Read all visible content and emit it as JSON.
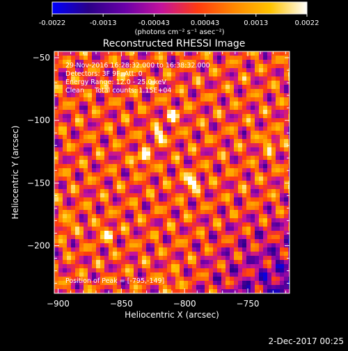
{
  "window": {
    "timestamp": "2-Dec-2017 00:25"
  },
  "colorbar": {
    "palette": [
      "#0000ff",
      "#2a0088",
      "#6a00a8",
      "#c4129c",
      "#ff3b10",
      "#ff8800",
      "#ffc400",
      "#ffffff"
    ],
    "tick_labels": [
      "-0.0022",
      "-0.0013",
      "-0.00043",
      "0.00043",
      "0.0013",
      "0.0022"
    ],
    "units": "(photons cm⁻² s⁻¹ asec⁻²)"
  },
  "chart_data": {
    "type": "heatmap",
    "title": "Reconstructed RHESSI Image",
    "xlabel": "Heliocentric X (arcsec)",
    "ylabel": "Heliocentric Y (arcsec)",
    "xlim": [
      -903,
      -717
    ],
    "ylim": [
      -238,
      -45
    ],
    "xticks": [
      -900,
      -850,
      -800,
      -750
    ],
    "xtick_labels": [
      "−900",
      "−850",
      "−800",
      "−750"
    ],
    "yticks": [
      -50,
      -100,
      -150,
      -200
    ],
    "ytick_labels": [
      "−50",
      "−100",
      "−150",
      "−200"
    ],
    "colorbar_range": [
      -0.0022,
      0.0022
    ],
    "annotations": [
      "29-Nov-2016 16:28:32.000 to 16:38:32.000",
      "Detectors: 3F 9F, Att: 0",
      "Energy Range: 12.0 - 25.0 keV",
      "Clean     Total counts: 1.15E+04",
      "Position of Peak = [-795,-149]"
    ],
    "peak": {
      "x": -795,
      "y": -149
    },
    "bright_sources": [
      {
        "x": -795,
        "y": -149,
        "level": 1.0
      },
      {
        "x": -833,
        "y": -130,
        "level": 0.8
      },
      {
        "x": -820,
        "y": -112,
        "level": 0.75
      },
      {
        "x": -808,
        "y": -96,
        "level": 0.6
      },
      {
        "x": -862,
        "y": -190,
        "level": 0.65
      },
      {
        "x": -893,
        "y": -183,
        "level": 0.55
      },
      {
        "x": -845,
        "y": -60,
        "level": 0.45
      },
      {
        "x": -733,
        "y": -118,
        "level": 0.6
      },
      {
        "x": -812,
        "y": -230,
        "level": 0.4
      }
    ]
  }
}
